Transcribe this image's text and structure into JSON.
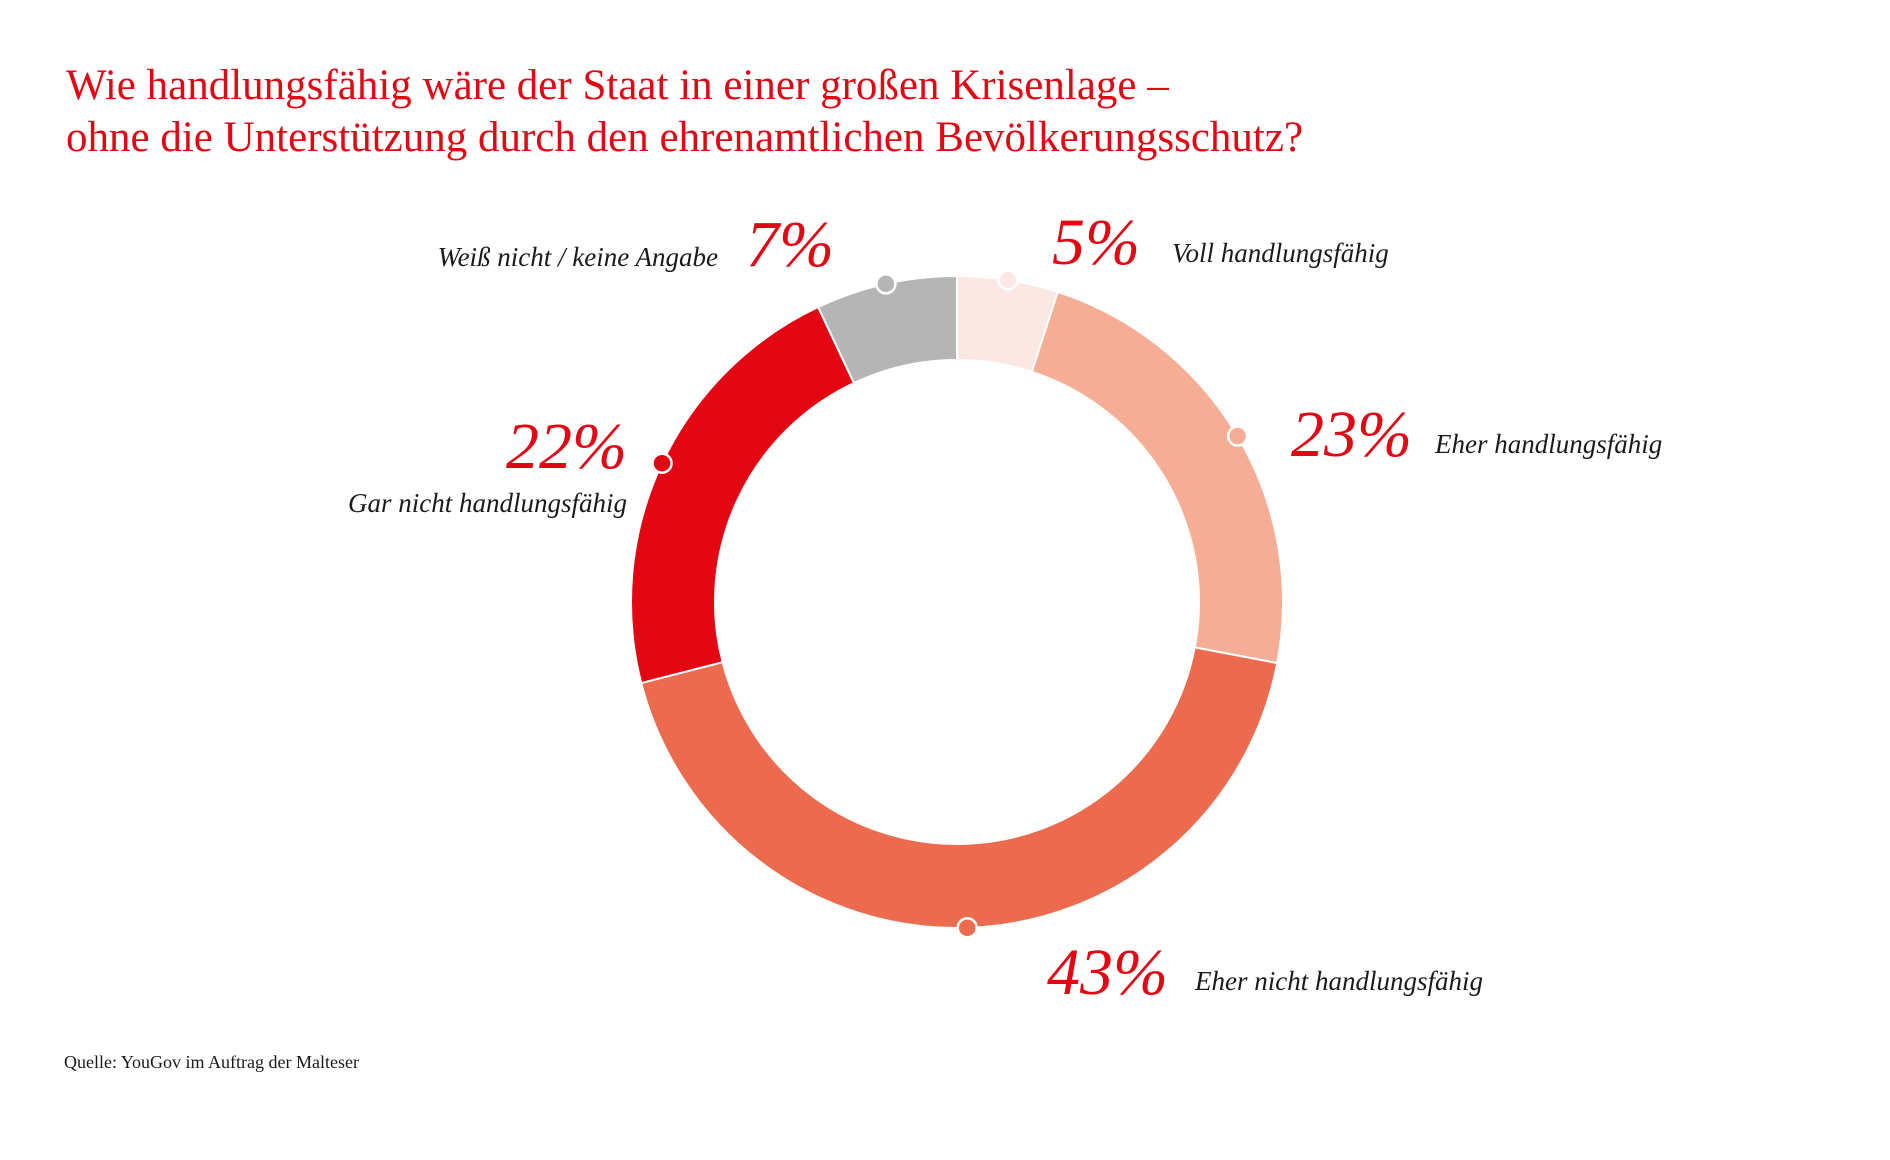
{
  "title_lines": [
    "Wie handlungsfähig wäre der Staat in einer großen Krisenlage –",
    "ohne die Unterstützung durch den ehrenamtlichen Bevölkerungsschutz?"
  ],
  "source": "Quelle: YouGov im Auftrag der Malteser",
  "colors": {
    "accent": "#e30613"
  },
  "chart_data": {
    "type": "pie",
    "variant": "donut",
    "title": "Wie handlungsfähig wäre der Staat in einer großen Krisenlage – ohne die Unterstützung durch den ehrenamtlichen Bevölkerungsschutz?",
    "unit": "%",
    "slices": [
      {
        "label": "Voll handlungsfähig",
        "value": 5,
        "display": "5%",
        "color": "#fce8e3"
      },
      {
        "label": "Eher handlungsfähig",
        "value": 23,
        "display": "23%",
        "color": "#f5ae95"
      },
      {
        "label": "Eher nicht handlungsfähig",
        "value": 43,
        "display": "43%",
        "color": "#ec6a4e"
      },
      {
        "label": "Gar nicht handlungsfähig",
        "value": 22,
        "display": "22%",
        "color": "#e30613"
      },
      {
        "label": "Weiß nicht / keine Angabe",
        "value": 7,
        "display": "7%",
        "color": "#b5b5b5"
      }
    ]
  }
}
